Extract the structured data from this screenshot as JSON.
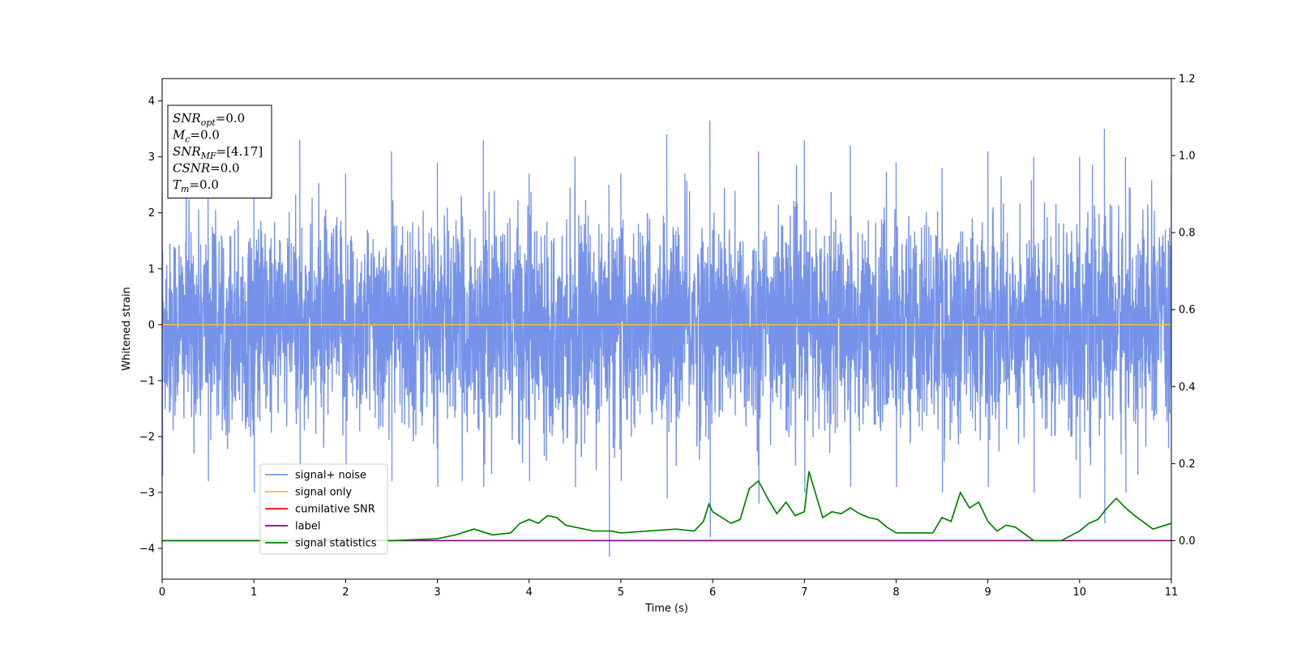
{
  "chart_data": {
    "type": "line",
    "title": "",
    "xlabel": "Time (s)",
    "ylabel": "Whitened strain",
    "xlim": [
      0,
      11
    ],
    "ylim": [
      -4.55,
      4.4
    ],
    "y2lim": [
      -0.1,
      1.2
    ],
    "xticks": [
      0,
      1,
      2,
      3,
      4,
      5,
      6,
      7,
      8,
      9,
      10,
      11
    ],
    "yticks": [
      -4,
      -3,
      -2,
      -1,
      0,
      1,
      2,
      3,
      4
    ],
    "y2ticks": [
      0.0,
      0.2,
      0.4,
      0.6,
      0.8,
      1.0,
      1.2
    ],
    "legend_position": "lower-left",
    "grid": false,
    "series": [
      {
        "name": "signal+ noise",
        "color": "#4169e1",
        "axis": "left",
        "kind": "noise",
        "envelope": [
          [
            0.0,
            2.4,
            -2.7
          ],
          [
            0.5,
            2.7,
            -2.8
          ],
          [
            1.0,
            2.6,
            -3.0
          ],
          [
            1.5,
            3.3,
            -2.7
          ],
          [
            2.0,
            2.7,
            -2.7
          ],
          [
            2.5,
            3.1,
            -2.8
          ],
          [
            3.0,
            2.9,
            -2.9
          ],
          [
            3.5,
            3.3,
            -2.9
          ],
          [
            4.0,
            2.7,
            -2.8
          ],
          [
            4.5,
            3.0,
            -2.9
          ],
          [
            4.87,
            2.5,
            -4.15
          ],
          [
            5.0,
            2.7,
            -2.8
          ],
          [
            5.5,
            3.4,
            -3.1
          ],
          [
            5.97,
            3.65,
            -3.8
          ],
          [
            6.5,
            3.1,
            -3.2
          ],
          [
            7.0,
            3.3,
            -3.0
          ],
          [
            7.5,
            3.2,
            -2.9
          ],
          [
            8.0,
            2.9,
            -2.9
          ],
          [
            8.5,
            2.8,
            -3.0
          ],
          [
            9.0,
            3.1,
            -2.9
          ],
          [
            9.5,
            3.0,
            -3.0
          ],
          [
            10.0,
            3.0,
            -3.1
          ],
          [
            10.27,
            3.5,
            -3.55
          ],
          [
            10.5,
            3.0,
            -3.0
          ],
          [
            11.0,
            2.7,
            -2.7
          ]
        ]
      },
      {
        "name": "signal only",
        "color": "#f5b94a",
        "axis": "left",
        "x": [
          0,
          11
        ],
        "y": [
          0,
          0
        ]
      },
      {
        "name": "cumilative SNR",
        "color": "#ff0000",
        "axis": "right",
        "x": [],
        "y": []
      },
      {
        "name": "label",
        "color": "#800080",
        "axis": "right",
        "x": [
          0,
          11
        ],
        "y": [
          0.0,
          0.0
        ]
      },
      {
        "name": "signal statistics",
        "color": "#008000",
        "axis": "right",
        "x": [
          0,
          0.5,
          1.0,
          1.5,
          2.0,
          2.5,
          3.0,
          3.2,
          3.4,
          3.6,
          3.8,
          3.9,
          4.0,
          4.1,
          4.2,
          4.3,
          4.4,
          4.5,
          4.7,
          4.9,
          5.0,
          5.3,
          5.6,
          5.8,
          5.9,
          5.96,
          6.0,
          6.1,
          6.2,
          6.3,
          6.4,
          6.5,
          6.6,
          6.7,
          6.8,
          6.9,
          7.0,
          7.05,
          7.1,
          7.2,
          7.3,
          7.4,
          7.5,
          7.6,
          7.7,
          7.8,
          7.9,
          8.0,
          8.2,
          8.4,
          8.5,
          8.6,
          8.7,
          8.8,
          8.9,
          9.0,
          9.1,
          9.2,
          9.3,
          9.5,
          9.8,
          10.0,
          10.1,
          10.2,
          10.3,
          10.4,
          10.5,
          10.6,
          10.8,
          11.0
        ],
        "y": [
          0.0,
          0.0,
          0.0,
          0.0,
          0.005,
          0.0,
          0.005,
          0.015,
          0.03,
          0.015,
          0.02,
          0.045,
          0.055,
          0.045,
          0.065,
          0.06,
          0.04,
          0.035,
          0.025,
          0.025,
          0.02,
          0.025,
          0.03,
          0.025,
          0.05,
          0.095,
          0.075,
          0.06,
          0.045,
          0.055,
          0.135,
          0.155,
          0.11,
          0.07,
          0.1,
          0.065,
          0.075,
          0.18,
          0.14,
          0.06,
          0.075,
          0.07,
          0.085,
          0.07,
          0.06,
          0.055,
          0.035,
          0.02,
          0.02,
          0.02,
          0.06,
          0.05,
          0.125,
          0.085,
          0.1,
          0.05,
          0.025,
          0.04,
          0.035,
          0.0,
          0.0,
          0.025,
          0.045,
          0.055,
          0.085,
          0.11,
          0.085,
          0.065,
          0.03,
          0.045
        ]
      }
    ],
    "annotation": {
      "lines": [
        {
          "base": "SNR",
          "sub": "opt",
          "value": "=0.0"
        },
        {
          "base": "M",
          "sub": "c",
          "value": "=0.0"
        },
        {
          "base": "SNR",
          "sub": "MF",
          "value": "=[4.17]"
        },
        {
          "base": "CSNR",
          "sub": "",
          "value": "=0.0"
        },
        {
          "base": "T",
          "sub": "m",
          "value": "=0.0"
        }
      ]
    }
  }
}
